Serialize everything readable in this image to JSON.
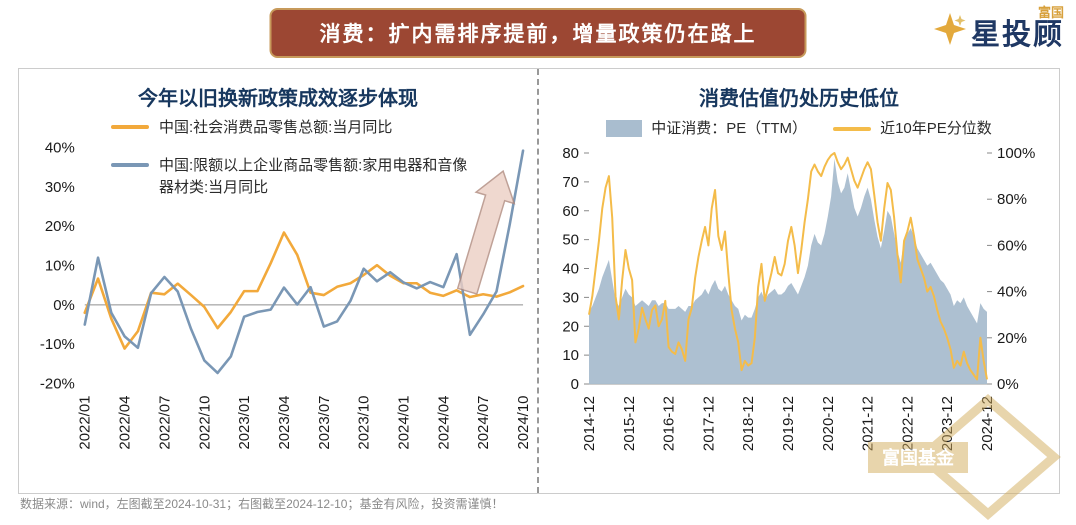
{
  "banner": {
    "title": "消费：扩内需排序提前，增量政策仍在路上"
  },
  "logo": {
    "small": "富国",
    "main": "星投顾"
  },
  "footer": {
    "note": "数据来源：wind，左图截至2024-10-31；右图截至2024-12-10；基金有风险，投资需谨慎！"
  },
  "watermark": {
    "label": "富国基金"
  },
  "colors": {
    "banner_bg": "#9C4733",
    "banner_border": "#C79A5B",
    "title_navy": "#17375E",
    "orange_line": "#F2A93B",
    "blue_line": "#7A97B5",
    "area_fill": "#A9BDCF",
    "percentile_line": "#F4BC4A"
  },
  "chart_data": [
    {
      "type": "line",
      "title": "今年以旧换新政策成效逐步体现",
      "x_labels": [
        "2022/01",
        "2022/02",
        "2022/03",
        "2022/04",
        "2022/05",
        "2022/06",
        "2022/07",
        "2022/08",
        "2022/09",
        "2022/10",
        "2022/11",
        "2022/12",
        "2023/01",
        "2023/02",
        "2023/03",
        "2023/04",
        "2023/05",
        "2023/06",
        "2023/07",
        "2023/08",
        "2023/09",
        "2023/10",
        "2023/11",
        "2023/12",
        "2024/01",
        "2024/02",
        "2024/03",
        "2024/04",
        "2024/05",
        "2024/06",
        "2024/07",
        "2024/08",
        "2024/09",
        "2024/10"
      ],
      "x_tick_every": 3,
      "ylim": [
        -20,
        40
      ],
      "ytick_step": 10,
      "ytick_suffix": "%",
      "series": [
        {
          "name": "中国:社会消费品零售总额:当月同比",
          "color": "#F2A93B",
          "values": [
            -2.0,
            6.7,
            -3.5,
            -11.1,
            -6.7,
            3.1,
            2.7,
            5.4,
            2.5,
            -0.5,
            -5.9,
            -1.8,
            3.5,
            3.5,
            10.6,
            18.4,
            12.7,
            3.1,
            2.5,
            4.6,
            5.5,
            7.6,
            10.1,
            7.4,
            5.5,
            5.5,
            3.1,
            2.3,
            3.7,
            2.0,
            2.7,
            2.1,
            3.2,
            4.8
          ]
        },
        {
          "name": "中国:限额以上企业商品零售额:家用电器和音像器材类:当月同比",
          "color": "#7A97B5",
          "values": [
            -5.0,
            12.0,
            -2.0,
            -8.0,
            -10.9,
            3.0,
            7.1,
            3.4,
            -6.1,
            -14.1,
            -17.3,
            -13.1,
            -3.0,
            -1.8,
            -1.2,
            4.4,
            0.1,
            4.5,
            -5.5,
            -4.2,
            1.0,
            9.2,
            6.0,
            8.3,
            5.7,
            4.2,
            5.8,
            4.5,
            12.9,
            -7.6,
            -2.4,
            3.4,
            20.5,
            39.2
          ]
        }
      ],
      "annotation": {
        "type": "up-arrow",
        "from": [
          28.8,
          3.5
        ],
        "to": [
          31.5,
          34
        ],
        "fill": "#ECCFC4",
        "stroke": "#B08A7E"
      }
    },
    {
      "type": "area-line-dual-axis",
      "title": "消费估值仍处历史低位",
      "n_points": 121,
      "x_tick_labels": [
        "2014-12",
        "2015-12",
        "2016-12",
        "2017-12",
        "2018-12",
        "2019-12",
        "2020-12",
        "2021-12",
        "2022-12",
        "2023-12",
        "2024-12"
      ],
      "x_tick_indices": [
        0,
        12,
        24,
        36,
        48,
        60,
        72,
        84,
        96,
        108,
        120
      ],
      "left_axis": {
        "lim": [
          0,
          80
        ],
        "step": 10,
        "suffix": ""
      },
      "right_axis": {
        "lim": [
          0,
          100
        ],
        "step": 20,
        "suffix": "%"
      },
      "series": [
        {
          "name": "中证消费：PE（TTM）",
          "type": "area",
          "axis": "left",
          "color": "#A9BDCF",
          "values": [
            25,
            27,
            30,
            33,
            37,
            40,
            43,
            36,
            29,
            27,
            30,
            33,
            31,
            30,
            27,
            28,
            29,
            28,
            27,
            29,
            29,
            27,
            28,
            28,
            26,
            26,
            26,
            27,
            26,
            25,
            27,
            27,
            29,
            30,
            31,
            33,
            31,
            34,
            36,
            33,
            32,
            34,
            31,
            29,
            27,
            26,
            22,
            24,
            23,
            23,
            26,
            30,
            32,
            29,
            31,
            32,
            33,
            31,
            31,
            32,
            34,
            35,
            33,
            31,
            34,
            37,
            41,
            48,
            52,
            49,
            48,
            52,
            58,
            65,
            78,
            70,
            66,
            68,
            73,
            67,
            61,
            58,
            61,
            65,
            68,
            64,
            57,
            51,
            47,
            53,
            60,
            58,
            52,
            46,
            42,
            50,
            52,
            54,
            51,
            47,
            45,
            43,
            41,
            42,
            40,
            38,
            36,
            35,
            33,
            31,
            27,
            29,
            28,
            30,
            27,
            25,
            23,
            21,
            28,
            26,
            25
          ]
        },
        {
          "name": "近10年PE分位数",
          "type": "line",
          "axis": "right",
          "color": "#F4BC4A",
          "values": [
            30,
            38,
            50,
            62,
            76,
            85,
            90,
            72,
            38,
            28,
            45,
            58,
            50,
            45,
            18,
            24,
            33,
            28,
            24,
            32,
            34,
            25,
            28,
            36,
            16,
            14,
            13,
            18,
            15,
            10,
            28,
            33,
            46,
            55,
            62,
            68,
            60,
            76,
            84,
            64,
            58,
            66,
            48,
            32,
            24,
            18,
            6,
            10,
            8,
            9,
            20,
            42,
            52,
            36,
            42,
            48,
            55,
            48,
            47,
            52,
            62,
            68,
            60,
            48,
            58,
            70,
            80,
            92,
            95,
            92,
            90,
            94,
            97,
            99,
            100,
            96,
            93,
            95,
            98,
            93,
            88,
            85,
            89,
            93,
            96,
            93,
            82,
            70,
            62,
            76,
            87,
            84,
            72,
            56,
            44,
            62,
            66,
            72,
            64,
            54,
            50,
            46,
            40,
            42,
            38,
            32,
            27,
            24,
            20,
            15,
            7,
            10,
            8,
            14,
            9,
            6,
            4,
            2,
            20,
            10,
            2
          ]
        }
      ]
    }
  ]
}
